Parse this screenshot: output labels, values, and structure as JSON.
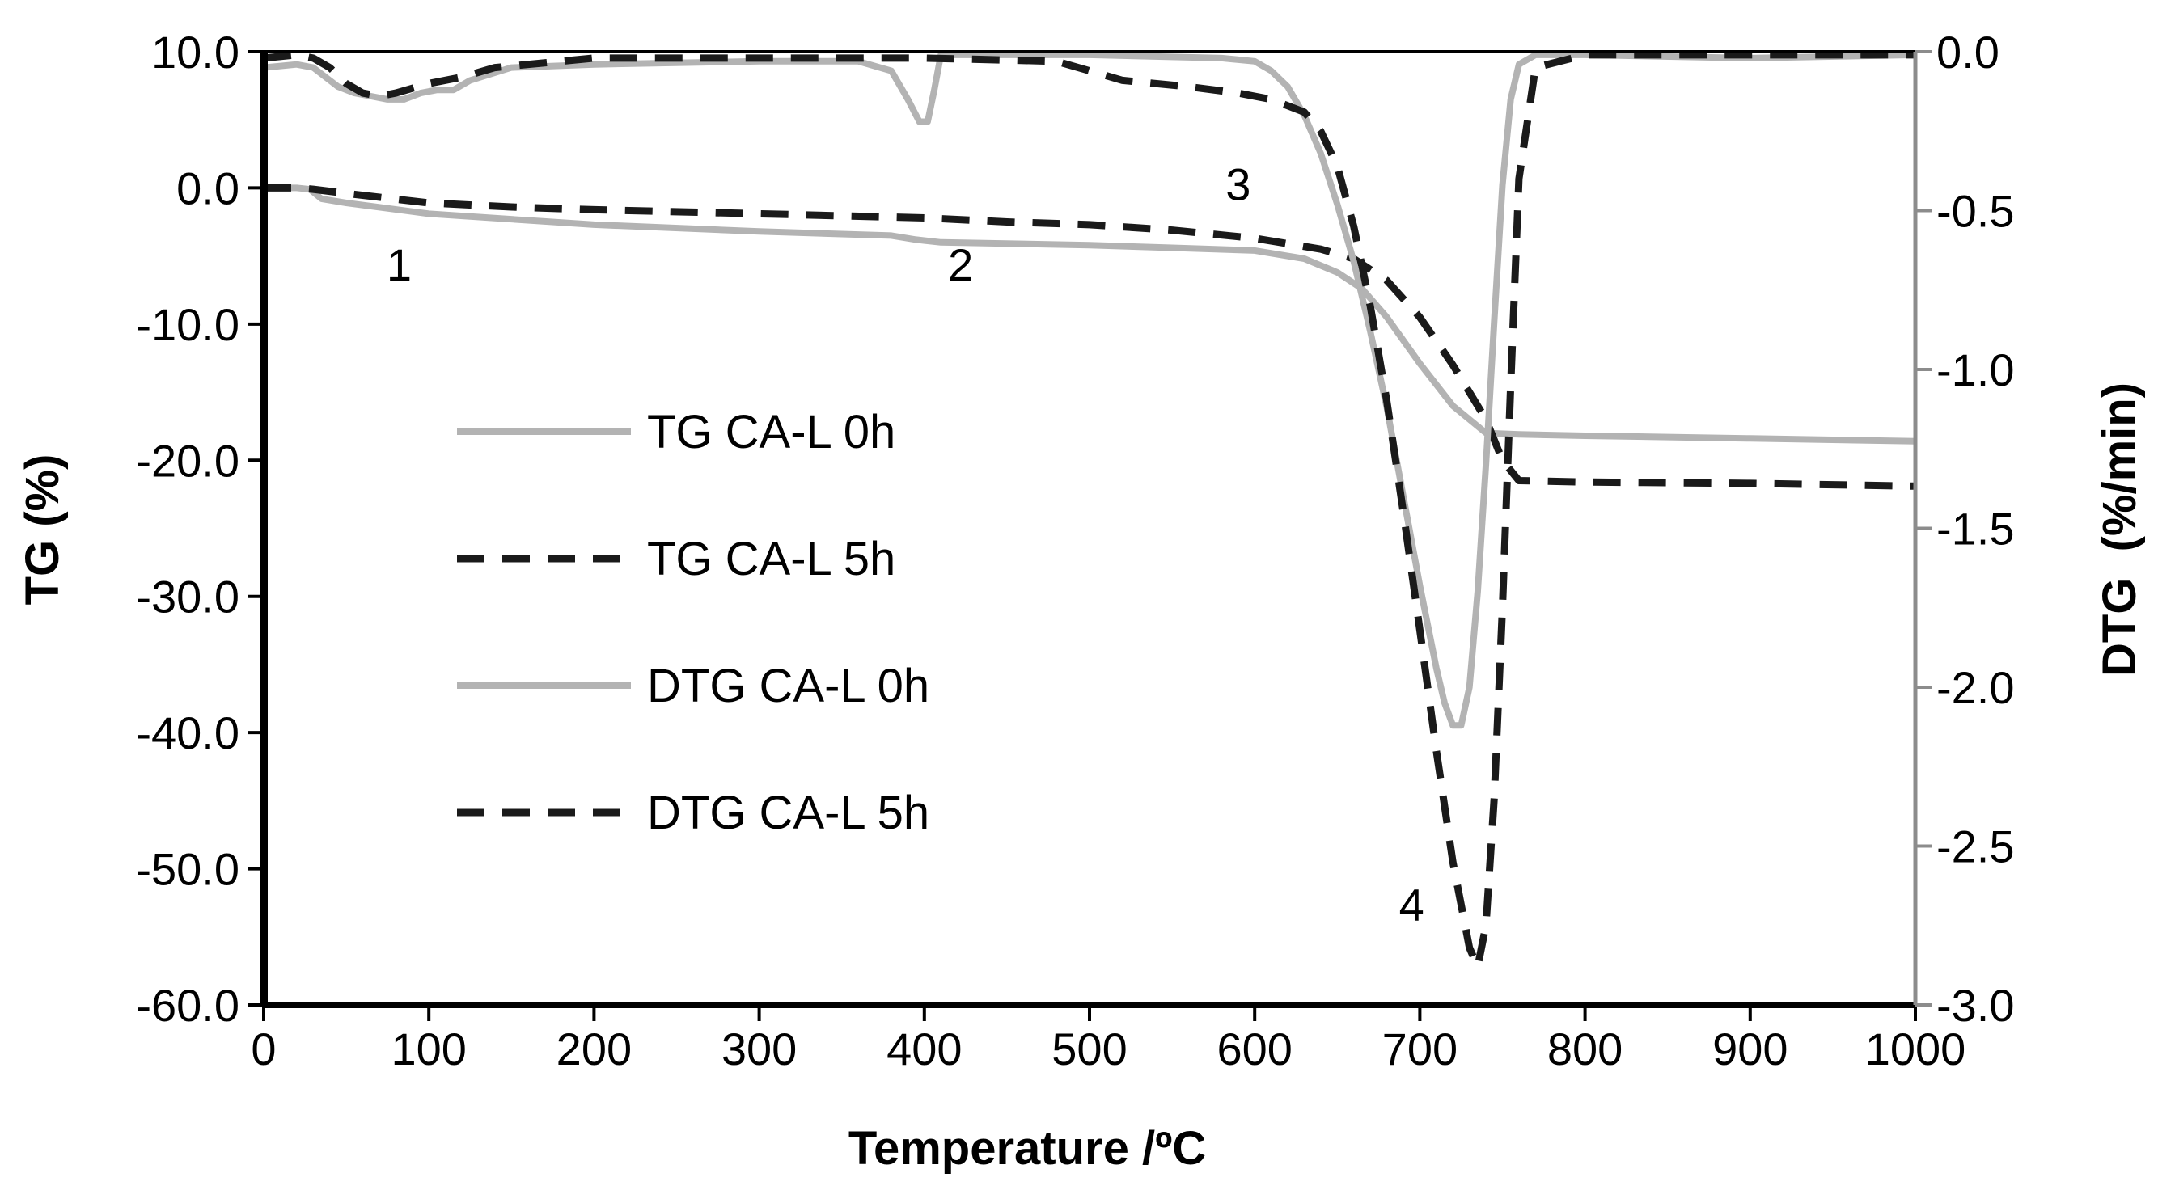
{
  "chart_data": {
    "type": "line",
    "title": "",
    "xlabel": "Temperature /ºC",
    "ylabel_left": "TG (%)",
    "ylabel_right": "DTG  (%/min)",
    "xlim": [
      0,
      1000
    ],
    "ylim_left": [
      -60,
      10
    ],
    "ylim_right": [
      -3,
      0
    ],
    "x_ticks": [
      "0",
      "100",
      "200",
      "300",
      "400",
      "500",
      "600",
      "700",
      "800",
      "900",
      "1000"
    ],
    "y_left_ticks": [
      "10.0",
      "0.0",
      "-10.0",
      "-20.0",
      "-30.0",
      "-40.0",
      "-50.0",
      "-60.0"
    ],
    "y_right_ticks": [
      "0.0",
      "-0.5",
      "-1.0",
      "-1.5",
      "-2.0",
      "-2.5",
      "-3.0"
    ],
    "grid": false,
    "legend_position": "center-left",
    "colors": {
      "light": "#b3b3b3",
      "dark": "#1a1a1a"
    },
    "annotations": [
      {
        "text": "1",
        "x": 82,
        "y": -6.8
      },
      {
        "text": "2",
        "x": 422,
        "y": -6.8
      },
      {
        "text": "3",
        "x": 590,
        "y": -0.9
      },
      {
        "text": "4",
        "x": 695,
        "y": -53.8
      }
    ],
    "series": [
      {
        "name": "TG CA-L 0h",
        "axis": "left",
        "style": "solid",
        "color": "light",
        "x": [
          0,
          10,
          20,
          28,
          35,
          50,
          100,
          200,
          300,
          380,
          395,
          410,
          500,
          550,
          600,
          630,
          650,
          665,
          680,
          700,
          720,
          740,
          760,
          800,
          900,
          1000
        ],
        "y": [
          0.0,
          0.0,
          0.0,
          -0.1,
          -0.8,
          -1.1,
          -1.9,
          -2.7,
          -3.2,
          -3.5,
          -3.8,
          -4.0,
          -4.2,
          -4.4,
          -4.6,
          -5.2,
          -6.2,
          -7.4,
          -9.5,
          -12.9,
          -16.0,
          -18.0,
          -18.1,
          -18.2,
          -18.4,
          -18.6
        ]
      },
      {
        "name": "TG CA-L 5h",
        "axis": "left",
        "style": "dashed",
        "color": "dark",
        "x": [
          0,
          20,
          30,
          50,
          100,
          150,
          200,
          300,
          400,
          450,
          500,
          550,
          600,
          640,
          660,
          680,
          700,
          720,
          740,
          750,
          760,
          800,
          900,
          1000
        ],
        "y": [
          0.0,
          0.0,
          -0.1,
          -0.4,
          -1.1,
          -1.4,
          -1.6,
          -1.9,
          -2.2,
          -2.5,
          -2.7,
          -3.1,
          -3.7,
          -4.5,
          -5.2,
          -6.8,
          -9.5,
          -13.0,
          -17.0,
          -20.0,
          -21.5,
          -21.6,
          -21.7,
          -21.9
        ]
      },
      {
        "name": "DTG CA-L 0h",
        "axis": "right",
        "style": "solid",
        "color": "light",
        "x": [
          0,
          20,
          30,
          35,
          45,
          55,
          65,
          75,
          85,
          95,
          105,
          115,
          125,
          150,
          200,
          300,
          360,
          380,
          390,
          397,
          402,
          406,
          410,
          500,
          580,
          600,
          610,
          620,
          630,
          640,
          650,
          660,
          670,
          680,
          690,
          700,
          710,
          715,
          720,
          725,
          730,
          735,
          740,
          745,
          750,
          755,
          760,
          770,
          800,
          900,
          1000
        ],
        "y": [
          -0.05,
          -0.04,
          -0.05,
          -0.07,
          -0.11,
          -0.13,
          -0.14,
          -0.15,
          -0.15,
          -0.13,
          -0.12,
          -0.12,
          -0.09,
          -0.05,
          -0.04,
          -0.03,
          -0.03,
          -0.06,
          -0.15,
          -0.22,
          -0.22,
          -0.12,
          -0.01,
          -0.01,
          -0.02,
          -0.03,
          -0.06,
          -0.11,
          -0.2,
          -0.32,
          -0.48,
          -0.66,
          -0.88,
          -1.12,
          -1.4,
          -1.68,
          -1.94,
          -2.05,
          -2.12,
          -2.12,
          -2.0,
          -1.7,
          -1.3,
          -0.85,
          -0.42,
          -0.15,
          -0.04,
          -0.01,
          -0.01,
          -0.02,
          -0.01
        ]
      },
      {
        "name": "DTG CA-L 5h",
        "axis": "right",
        "style": "dashed",
        "color": "dark",
        "x": [
          0,
          20,
          30,
          40,
          50,
          60,
          70,
          80,
          100,
          120,
          140,
          200,
          300,
          400,
          480,
          500,
          520,
          560,
          590,
          610,
          630,
          640,
          650,
          660,
          670,
          680,
          690,
          700,
          710,
          720,
          730,
          735,
          740,
          745,
          750,
          755,
          760,
          770,
          800,
          900,
          1000
        ],
        "y": [
          -0.02,
          -0.01,
          -0.02,
          -0.05,
          -0.1,
          -0.13,
          -0.14,
          -0.13,
          -0.1,
          -0.08,
          -0.05,
          -0.02,
          -0.02,
          -0.02,
          -0.03,
          -0.06,
          -0.09,
          -0.11,
          -0.13,
          -0.15,
          -0.19,
          -0.25,
          -0.36,
          -0.55,
          -0.8,
          -1.1,
          -1.45,
          -1.82,
          -2.2,
          -2.55,
          -2.82,
          -2.88,
          -2.75,
          -2.35,
          -1.75,
          -1.05,
          -0.4,
          -0.05,
          -0.01,
          -0.01,
          -0.01
        ]
      }
    ]
  }
}
